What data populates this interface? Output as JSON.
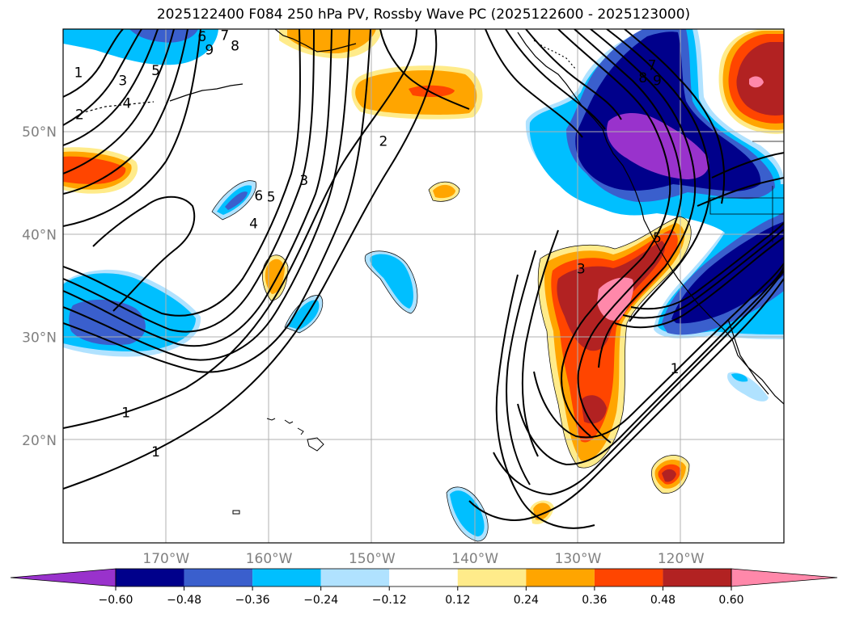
{
  "title": "2025122400 F084 250 hPa PV, Rossby Wave PC (2025122600 - 2025123000)",
  "map": {
    "lon_range": [
      -180,
      -110
    ],
    "lat_range": [
      10,
      60
    ],
    "lat_ticks": [
      {
        "value": 50,
        "label": "50°N"
      },
      {
        "value": 40,
        "label": "40°N"
      },
      {
        "value": 30,
        "label": "30°N"
      },
      {
        "value": 20,
        "label": "20°N"
      }
    ],
    "lon_ticks": [
      {
        "value": -170,
        "label": "170°W"
      },
      {
        "value": -160,
        "label": "160°W"
      },
      {
        "value": -150,
        "label": "150°W"
      },
      {
        "value": -140,
        "label": "140°W"
      },
      {
        "value": -130,
        "label": "130°W"
      },
      {
        "value": -120,
        "label": "120°W"
      }
    ],
    "contour_labels": [
      {
        "text": "1",
        "lon": -178.5,
        "lat": 55.8
      },
      {
        "text": "2",
        "lon": -178.4,
        "lat": 51.7
      },
      {
        "text": "3",
        "lon": -174.2,
        "lat": 55.0
      },
      {
        "text": "4",
        "lon": -173.8,
        "lat": 52.8
      },
      {
        "text": "5",
        "lon": -171.0,
        "lat": 56.0
      },
      {
        "text": "6",
        "lon": -166.5,
        "lat": 59.3
      },
      {
        "text": "7",
        "lon": -164.3,
        "lat": 59.4
      },
      {
        "text": "8",
        "lon": -163.3,
        "lat": 58.4
      },
      {
        "text": "9",
        "lon": -165.8,
        "lat": 58.0
      },
      {
        "text": "6",
        "lon": -161.0,
        "lat": 43.8
      },
      {
        "text": "5",
        "lon": -159.8,
        "lat": 43.7
      },
      {
        "text": "3",
        "lon": -156.6,
        "lat": 45.3
      },
      {
        "text": "4",
        "lon": -161.5,
        "lat": 41.1
      },
      {
        "text": "2",
        "lon": -148.9,
        "lat": 49.1
      },
      {
        "text": "3",
        "lon": -129.7,
        "lat": 36.7
      },
      {
        "text": "5",
        "lon": -122.3,
        "lat": 39.7
      },
      {
        "text": "1",
        "lon": -120.6,
        "lat": 27.0
      },
      {
        "text": "1",
        "lon": -173.9,
        "lat": 22.7
      },
      {
        "text": "1",
        "lon": -171.0,
        "lat": 18.9
      },
      {
        "text": "7",
        "lon": -122.8,
        "lat": 56.5
      },
      {
        "text": "8",
        "lon": -123.7,
        "lat": 55.3
      },
      {
        "text": "9",
        "lon": -122.3,
        "lat": 55.0
      }
    ]
  },
  "colorbar": {
    "ticks": [
      "−0.60",
      "−0.48",
      "−0.36",
      "−0.24",
      "−0.12",
      "0.12",
      "0.24",
      "0.36",
      "0.48",
      "0.60"
    ],
    "colors": [
      "#9932cc",
      "#00008b",
      "#3a5fcd",
      "#00bfff",
      "#b0e2ff",
      "#ffffff",
      "#ffeb8a",
      "#ffa500",
      "#ff4500",
      "#b22222",
      "#ff88aa"
    ]
  }
}
